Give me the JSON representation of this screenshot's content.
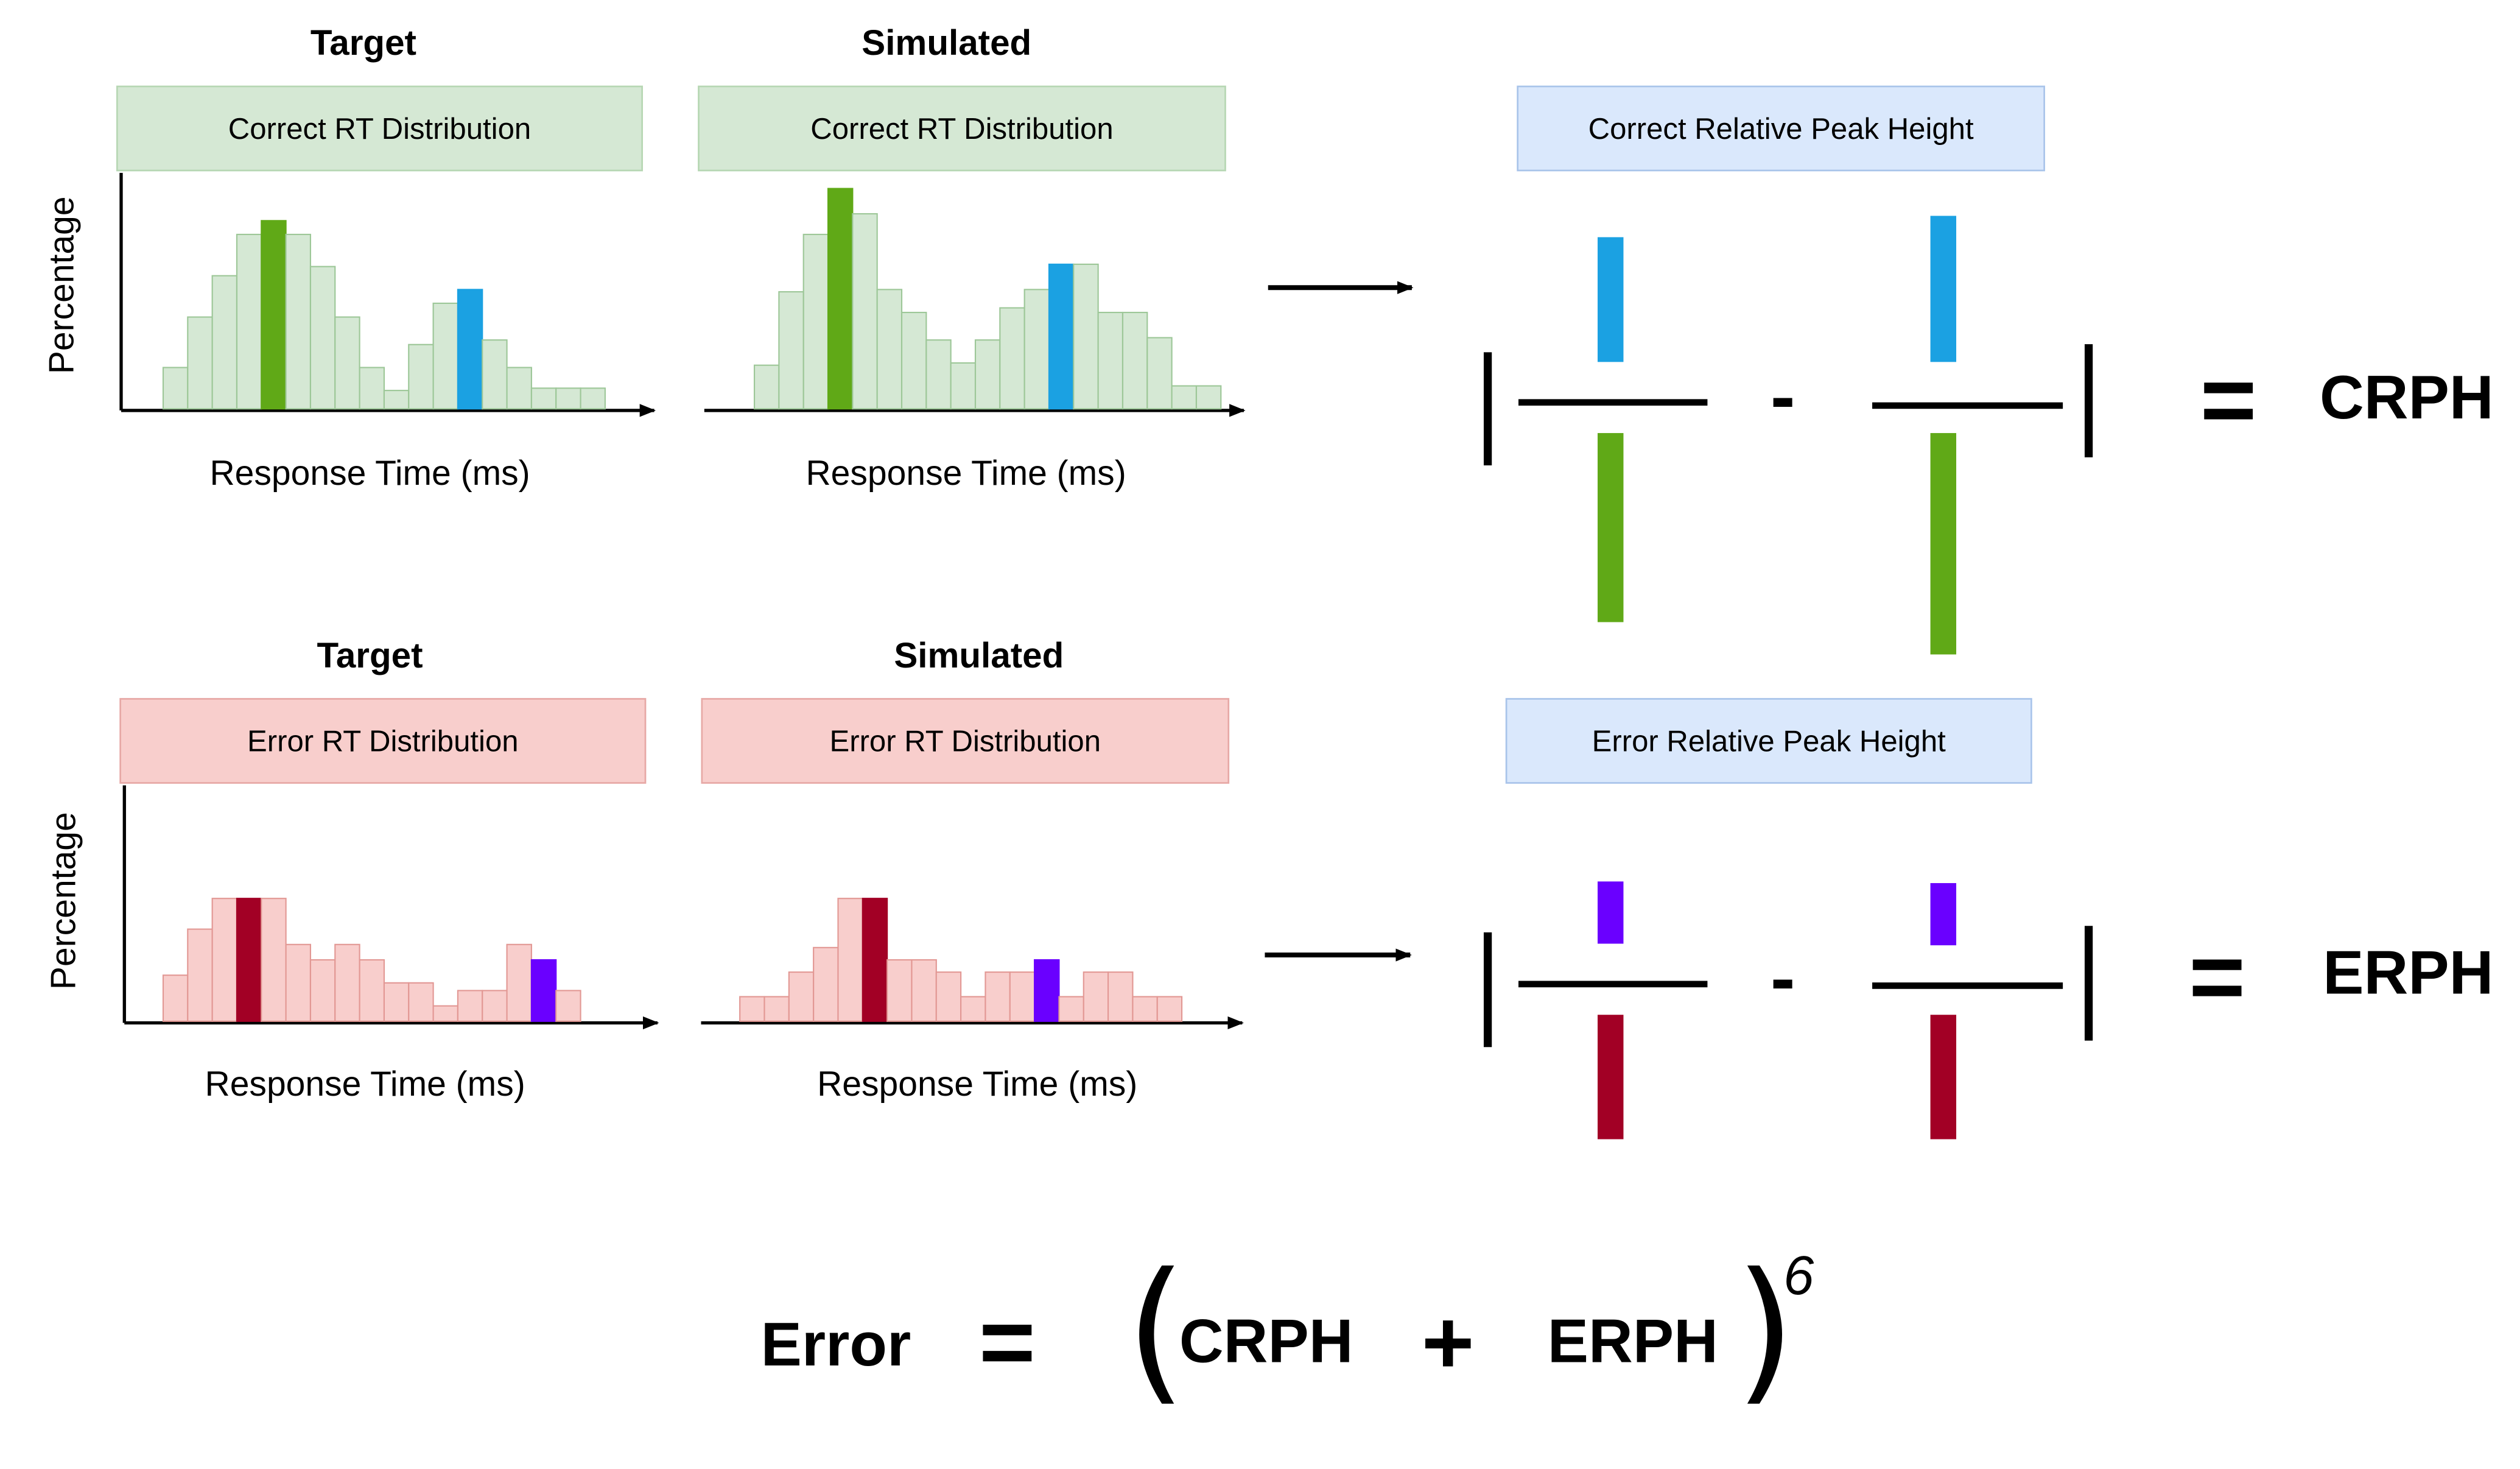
{
  "colors": {
    "green_light": "#d5e8d4",
    "green_peak": "#60a917",
    "blue_peak": "#1ba1e2",
    "red_light": "#f8cecc",
    "red_peak": "#a20025",
    "violet_peak": "#6a00ff",
    "blue_box": "#dae8fc"
  },
  "correct_row": {
    "target": {
      "title": "Target",
      "box_label": "Correct RT Distribution",
      "ylabel": "Percentage",
      "xlabel": "Response Time (ms)"
    },
    "simulated": {
      "title": "Simulated",
      "box_label": "Correct RT Distribution",
      "xlabel": "Response Time (ms)"
    },
    "peak_box_label": "Correct Relative Peak Height",
    "result_label": "CRPH"
  },
  "error_row": {
    "target": {
      "title": "Target",
      "box_label": "Error RT Distribution",
      "ylabel": "Percentage",
      "xlabel": "Response Time (ms)"
    },
    "simulated": {
      "title": "Simulated",
      "box_label": "Error RT Distribution",
      "xlabel": "Response Time (ms)"
    },
    "peak_box_label": "Error Relative Peak Height",
    "result_label": "ERPH"
  },
  "symbols": {
    "equals": "=",
    "minus": "-",
    "plus": "+",
    "left_paren": "(",
    "right_paren": ")"
  },
  "formula": {
    "lhs": "Error",
    "term1": "CRPH",
    "term2": "ERPH",
    "exponent": "6"
  },
  "histograms": {
    "correct_target": {
      "heights": [
        0.18,
        0.4,
        0.58,
        0.76,
        0.82,
        0.76,
        0.62,
        0.4,
        0.18,
        0.08,
        0.28,
        0.46,
        0.52,
        0.3,
        0.18,
        0.09,
        0.09,
        0.09
      ],
      "peaks": [
        {
          "index": 4,
          "color": "green"
        },
        {
          "index": 12,
          "color": "blue"
        }
      ]
    },
    "correct_simulated": {
      "heights": [
        0.19,
        0.51,
        0.76,
        0.96,
        0.85,
        0.52,
        0.42,
        0.3,
        0.2,
        0.3,
        0.44,
        0.52,
        0.63,
        0.63,
        0.42,
        0.42,
        0.31,
        0.1,
        0.1
      ],
      "peaks": [
        {
          "index": 3,
          "color": "green"
        },
        {
          "index": 12,
          "color": "blue"
        }
      ]
    },
    "error_target": {
      "heights": [
        0.3,
        0.6,
        0.8,
        0.8,
        0.8,
        0.5,
        0.4,
        0.5,
        0.4,
        0.25,
        0.25,
        0.1,
        0.2,
        0.2,
        0.5,
        0.4,
        0.2
      ],
      "peaks": [
        {
          "index": 3,
          "color": "red"
        },
        {
          "index": 15,
          "color": "violet"
        }
      ]
    },
    "error_simulated": {
      "heights": [
        0.2,
        0.2,
        0.4,
        0.6,
        1.0,
        1.0,
        0.5,
        0.5,
        0.4,
        0.2,
        0.4,
        0.4,
        0.5,
        0.2,
        0.4,
        0.4,
        0.2,
        0.2
      ],
      "peaks": [
        {
          "index": 5,
          "color": "red"
        },
        {
          "index": 12,
          "color": "violet"
        }
      ]
    }
  },
  "fraction_bars": {
    "correct_target": {
      "numerator": 0.66,
      "denominator": 1.0,
      "num_color": "blue",
      "den_color": "green"
    },
    "correct_simulated": {
      "numerator": 0.66,
      "denominator": 1.0,
      "num_color": "blue",
      "den_color": "green"
    },
    "error_target": {
      "numerator": 0.5,
      "denominator": 1.0,
      "num_color": "violet",
      "den_color": "red"
    },
    "error_simulated": {
      "numerator": 0.5,
      "denominator": 1.0,
      "num_color": "violet",
      "den_color": "red"
    }
  }
}
